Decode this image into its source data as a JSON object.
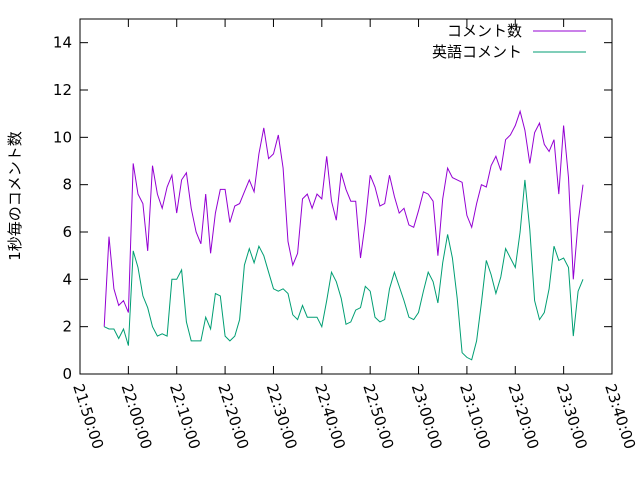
{
  "chart_data": {
    "type": "line",
    "title": "",
    "xlabel": "",
    "ylabel": "1秒毎のコメント数",
    "xlim": [
      "21:50:00",
      "23:40:00"
    ],
    "ylim": [
      0,
      15
    ],
    "x_ticks": [
      "21:50:00",
      "22:00:00",
      "22:10:00",
      "22:20:00",
      "22:30:00",
      "22:40:00",
      "22:50:00",
      "23:00:00",
      "23:10:00",
      "23:20:00",
      "23:30:00",
      "23:40:00"
    ],
    "y_ticks": [
      0,
      2,
      4,
      6,
      8,
      10,
      12,
      14
    ],
    "grid": false,
    "legend": "top-right",
    "x_start": "21:55:00",
    "x_step_seconds": 60,
    "series": [
      {
        "name": "コメント数",
        "color": "#9400d3",
        "values": [
          2.0,
          5.8,
          3.6,
          2.9,
          3.1,
          2.6,
          8.9,
          7.6,
          7.2,
          5.2,
          8.8,
          7.6,
          7.0,
          7.9,
          8.4,
          6.8,
          8.2,
          8.5,
          7.0,
          6.0,
          5.5,
          7.6,
          5.1,
          6.8,
          7.8,
          7.8,
          6.4,
          7.1,
          7.2,
          7.7,
          8.2,
          7.7,
          9.3,
          10.4,
          9.1,
          9.3,
          10.1,
          8.7,
          5.6,
          4.6,
          5.1,
          7.4,
          7.6,
          7.0,
          7.6,
          7.4,
          9.2,
          7.3,
          6.5,
          8.5,
          7.8,
          7.3,
          7.3,
          4.9,
          6.4,
          8.4,
          7.9,
          7.1,
          7.2,
          8.4,
          7.5,
          6.8,
          7.0,
          6.3,
          6.2,
          6.9,
          7.7,
          7.6,
          7.3,
          5.0,
          7.4,
          8.7,
          8.3,
          8.2,
          8.1,
          6.7,
          6.2,
          7.2,
          8.0,
          7.9,
          8.8,
          9.2,
          8.6,
          9.9,
          10.1,
          10.5,
          11.1,
          10.3,
          8.9,
          10.2,
          10.6,
          9.7,
          9.4,
          9.9,
          7.6,
          10.5,
          8.3,
          4.0,
          6.4,
          8.0
        ],
        "x_start": "21:55:00",
        "x_step_seconds": 60
      },
      {
        "name": "英語コメント",
        "color": "#009e73",
        "values": [
          2.0,
          1.9,
          1.9,
          1.5,
          1.9,
          1.2,
          5.2,
          4.5,
          3.3,
          2.8,
          2.0,
          1.6,
          1.7,
          1.6,
          4.0,
          4.0,
          4.4,
          2.2,
          1.4,
          1.4,
          1.4,
          2.4,
          1.9,
          3.4,
          3.3,
          1.6,
          1.4,
          1.6,
          2.3,
          4.6,
          5.3,
          4.7,
          5.4,
          5.0,
          4.3,
          3.6,
          3.5,
          3.6,
          3.4,
          2.5,
          2.3,
          2.9,
          2.4,
          2.4,
          2.4,
          2.0,
          3.1,
          4.3,
          3.9,
          3.2,
          2.1,
          2.2,
          2.7,
          2.8,
          3.7,
          3.5,
          2.4,
          2.2,
          2.3,
          3.6,
          4.3,
          3.7,
          3.1,
          2.4,
          2.3,
          2.6,
          3.5,
          4.3,
          3.9,
          3.0,
          4.7,
          5.9,
          4.9,
          3.2,
          0.9,
          0.7,
          0.6,
          1.4,
          3.0,
          4.8,
          4.2,
          3.4,
          4.1,
          5.3,
          4.9,
          4.5,
          6.0,
          8.2,
          6.1,
          3.1,
          2.3,
          2.6,
          3.6,
          5.4,
          4.8,
          4.9,
          4.5,
          1.6,
          3.5,
          4.0
        ],
        "x_start": "21:55:00",
        "x_step_seconds": 60
      }
    ]
  }
}
